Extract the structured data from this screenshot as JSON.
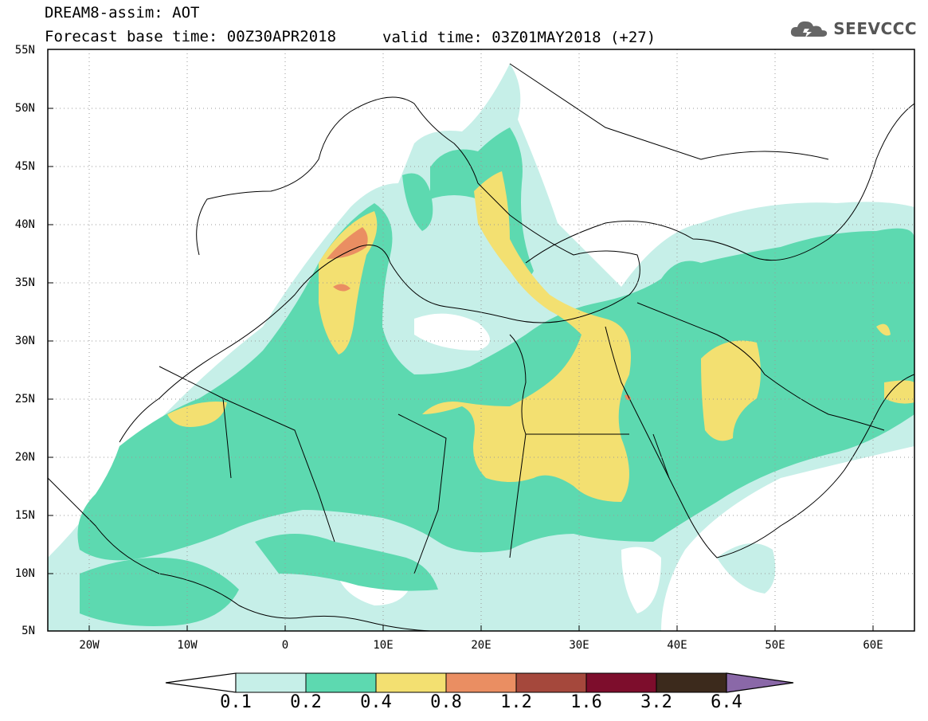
{
  "header": {
    "title": "DREAM8-assim: AOT",
    "base_time": "Forecast base time: 00Z30APR2018",
    "valid_time": "valid time: 03Z01MAY2018 (+27)",
    "logo_text": "SEEVCCC"
  },
  "axes": {
    "y_labels": [
      "55N",
      "50N",
      "45N",
      "40N",
      "35N",
      "30N",
      "25N",
      "20N",
      "15N",
      "10N",
      "5N"
    ],
    "x_labels": [
      "20W",
      "10W",
      "0",
      "10E",
      "20E",
      "30E",
      "40E",
      "50E",
      "60E"
    ]
  },
  "colorbar": {
    "labels": [
      "0.1",
      "0.2",
      "0.4",
      "0.8",
      "1.2",
      "1.6",
      "3.2",
      "6.4"
    ],
    "colors": [
      "#c6efe8",
      "#5dd9b0",
      "#f3e071",
      "#ea8e62",
      "#a5483c",
      "#7d0d2c",
      "#3c2a1c",
      "#8a68a8"
    ]
  },
  "map_colors": {
    "land_line": "#000000",
    "level_0_1": "#c6efe8",
    "level_0_2": "#5dd9b0",
    "level_0_4": "#f3e071",
    "level_0_8": "#ea8e62"
  }
}
